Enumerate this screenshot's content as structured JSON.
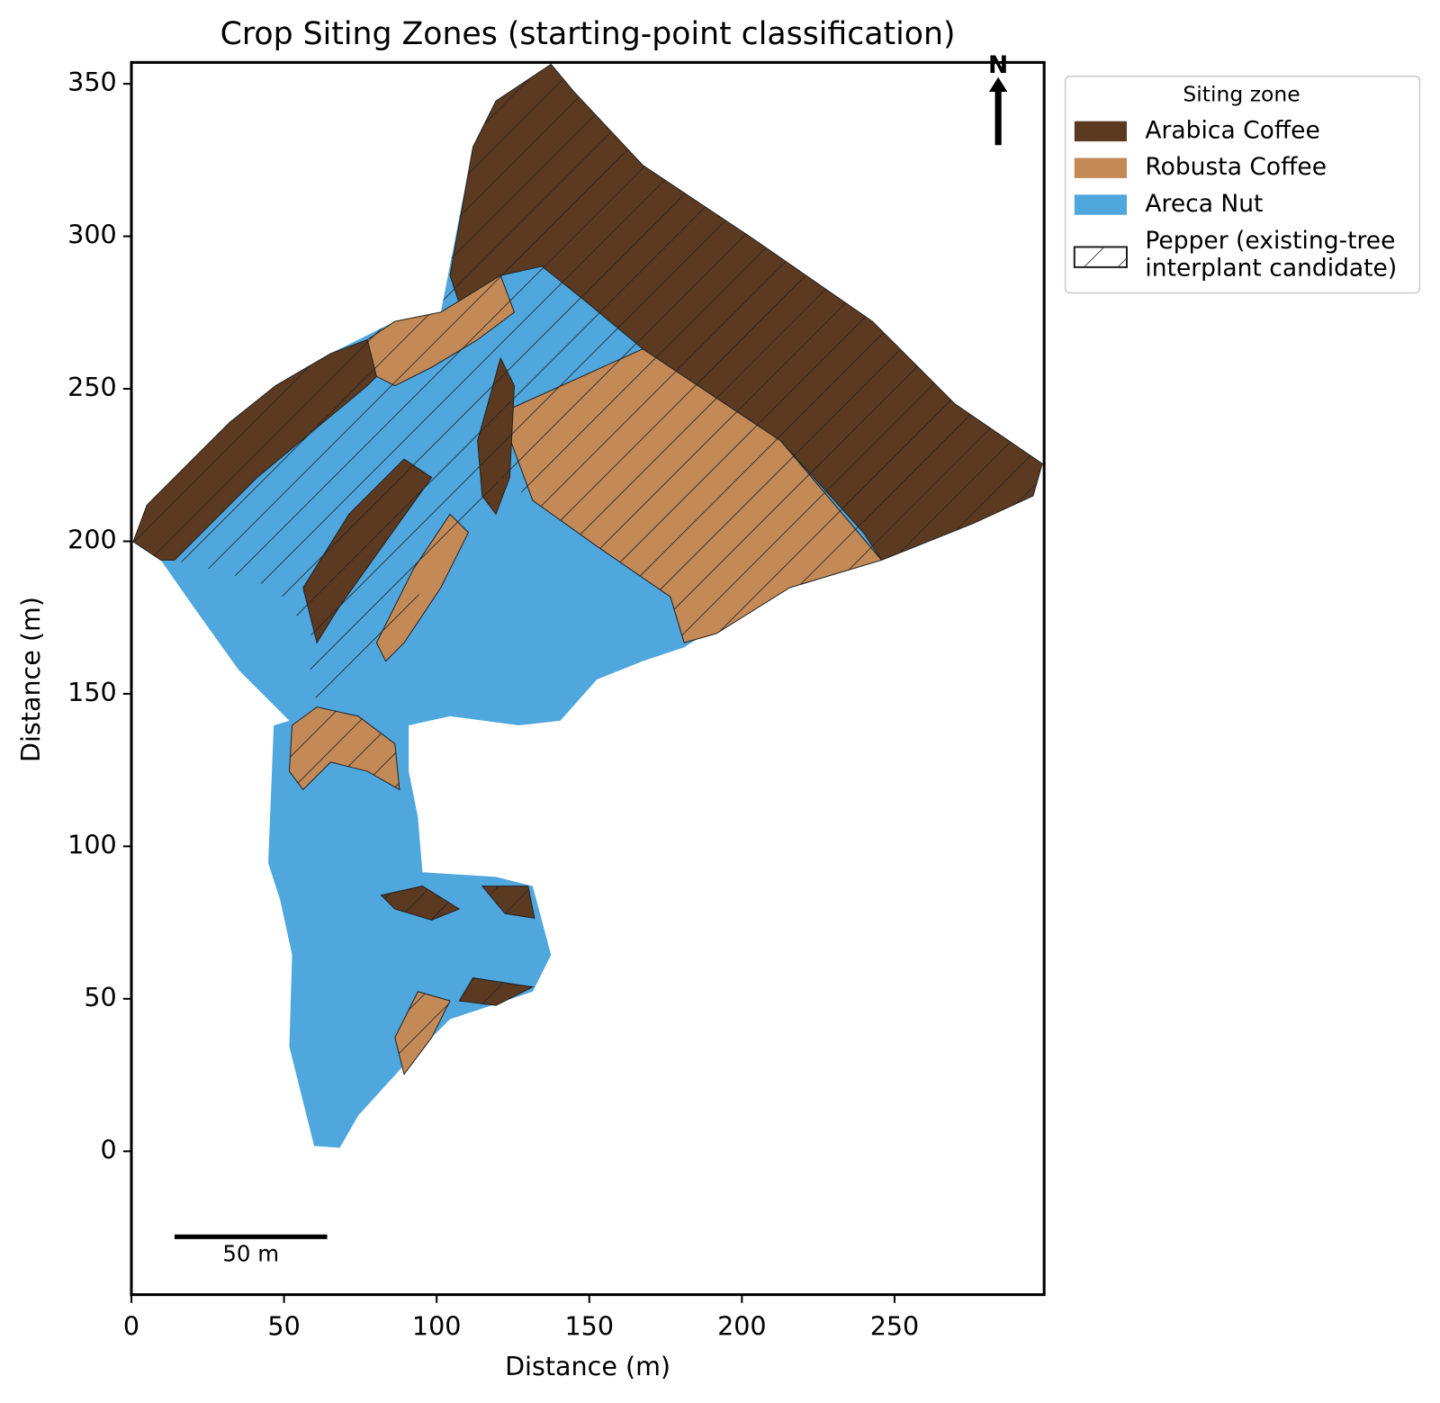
{
  "chart_data": {
    "type": "map",
    "title": "Crop Siting Zones (starting-point classification)",
    "x_label": "Distance (m)",
    "y_label": "Distance (m)",
    "xlim": [
      0,
      299
    ],
    "ylim": [
      -47,
      357
    ],
    "xticks": [
      0,
      50,
      100,
      150,
      200,
      250
    ],
    "yticks": [
      0,
      50,
      100,
      150,
      200,
      250,
      300,
      350
    ],
    "legend": {
      "title": "Siting zone",
      "position": "outside upper right",
      "entries": [
        {
          "name": "Arabica Coffee",
          "color": "#5c3a21"
        },
        {
          "name": "Robusta Coffee",
          "color": "#c38a57"
        },
        {
          "name": "Areca Nut",
          "color": "#4fa7de"
        },
        {
          "name": [
            "Pepper (existing-tree",
            "interplant candidate)"
          ],
          "hatch": true
        }
      ]
    },
    "scalebar": {
      "length": 50,
      "label": "50 m"
    },
    "north_arrow": "N"
  }
}
